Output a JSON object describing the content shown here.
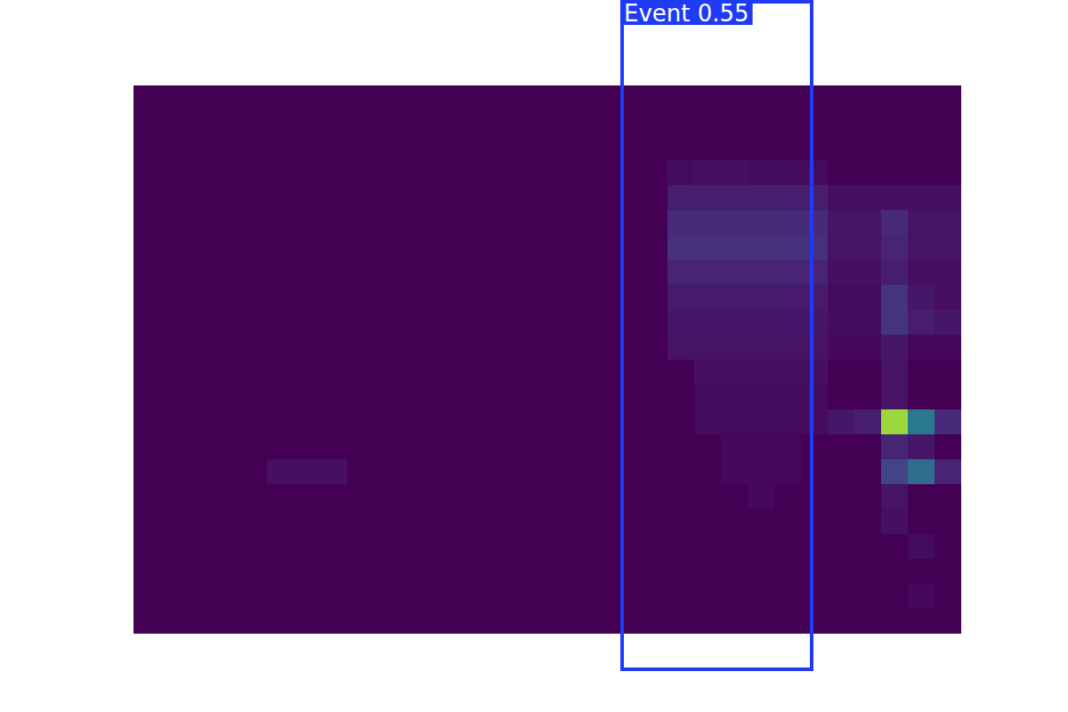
{
  "chart_data": {
    "type": "heatmap",
    "tick_labels": false,
    "grid": false,
    "xlim": [
      0,
      31
    ],
    "ylim": [
      0,
      22
    ],
    "color_range": [
      0,
      1
    ],
    "cells": [
      [
        0,
        0,
        0,
        0,
        0,
        0,
        0,
        0,
        0,
        0,
        0,
        0,
        0,
        0,
        0,
        0,
        0,
        0,
        0,
        0,
        0,
        0,
        0,
        0,
        0,
        0,
        0,
        0,
        0,
        0,
        0
      ],
      [
        0,
        0,
        0,
        0,
        0,
        0,
        0,
        0,
        0,
        0,
        0,
        0,
        0,
        0,
        0,
        0,
        0,
        0,
        0,
        0,
        0,
        0,
        0,
        0,
        0,
        0,
        0,
        0,
        0,
        0,
        0
      ],
      [
        0,
        0,
        0,
        0,
        0,
        0,
        0,
        0,
        0,
        0,
        0,
        0,
        0,
        0,
        0,
        0,
        0,
        0,
        0,
        0,
        0,
        0,
        0,
        0,
        0,
        0,
        0,
        0,
        0,
        0,
        0
      ],
      [
        0,
        0,
        0,
        0,
        0,
        0,
        0,
        0,
        0,
        0,
        0,
        0,
        0,
        0,
        0,
        0,
        0,
        0,
        0,
        0,
        0.03,
        0.04,
        0.04,
        0.03,
        0.03,
        0.03,
        0,
        0,
        0,
        0,
        0
      ],
      [
        0,
        0,
        0,
        0,
        0,
        0,
        0,
        0,
        0,
        0,
        0,
        0,
        0,
        0,
        0,
        0,
        0,
        0,
        0,
        0,
        0.08,
        0.08,
        0.08,
        0.08,
        0.08,
        0.08,
        0.04,
        0.04,
        0.04,
        0.04,
        0.04
      ],
      [
        0,
        0,
        0,
        0,
        0,
        0,
        0,
        0,
        0,
        0,
        0,
        0,
        0,
        0,
        0,
        0,
        0,
        0,
        0,
        0,
        0.12,
        0.12,
        0.12,
        0.12,
        0.12,
        0.12,
        0.05,
        0.05,
        0.12,
        0.05,
        0.05
      ],
      [
        0,
        0,
        0,
        0,
        0,
        0,
        0,
        0,
        0,
        0,
        0,
        0,
        0,
        0,
        0,
        0,
        0,
        0,
        0,
        0,
        0.14,
        0.14,
        0.14,
        0.14,
        0.14,
        0.14,
        0.05,
        0.05,
        0.1,
        0.05,
        0.05
      ],
      [
        0,
        0,
        0,
        0,
        0,
        0,
        0,
        0,
        0,
        0,
        0,
        0,
        0,
        0,
        0,
        0,
        0,
        0,
        0,
        0,
        0.1,
        0.1,
        0.1,
        0.1,
        0.1,
        0.1,
        0.04,
        0.04,
        0.08,
        0.04,
        0.04
      ],
      [
        0,
        0,
        0,
        0,
        0,
        0,
        0,
        0,
        0,
        0,
        0,
        0,
        0,
        0,
        0,
        0,
        0,
        0,
        0,
        0,
        0.07,
        0.07,
        0.07,
        0.07,
        0.07,
        0.07,
        0.03,
        0.03,
        0.15,
        0.06,
        0.04
      ],
      [
        0,
        0,
        0,
        0,
        0,
        0,
        0,
        0,
        0,
        0,
        0,
        0,
        0,
        0,
        0,
        0,
        0,
        0,
        0,
        0,
        0.06,
        0.06,
        0.06,
        0.06,
        0.06,
        0.06,
        0.03,
        0.03,
        0.15,
        0.08,
        0.06
      ],
      [
        0,
        0,
        0,
        0,
        0,
        0,
        0,
        0,
        0,
        0,
        0,
        0,
        0,
        0,
        0,
        0,
        0,
        0,
        0,
        0,
        0.05,
        0.05,
        0.05,
        0.05,
        0.05,
        0.05,
        0.02,
        0.02,
        0.06,
        0.02,
        0.02
      ],
      [
        0,
        0,
        0,
        0,
        0,
        0,
        0,
        0,
        0,
        0,
        0,
        0,
        0,
        0,
        0,
        0,
        0,
        0,
        0,
        0,
        0,
        0.04,
        0.04,
        0.04,
        0.04,
        0.04,
        0,
        0,
        0.05,
        0,
        0
      ],
      [
        0,
        0,
        0,
        0,
        0,
        0,
        0,
        0,
        0,
        0,
        0,
        0,
        0,
        0,
        0,
        0,
        0,
        0,
        0,
        0,
        0,
        0.03,
        0.03,
        0.03,
        0.03,
        0.03,
        0,
        0,
        0.05,
        0,
        0
      ],
      [
        0,
        0,
        0,
        0,
        0,
        0,
        0,
        0,
        0,
        0,
        0,
        0,
        0,
        0,
        0,
        0,
        0,
        0,
        0,
        0,
        0,
        0.03,
        0.03,
        0.03,
        0.03,
        0.03,
        0.06,
        0.08,
        0.85,
        0.4,
        0.12
      ],
      [
        0,
        0,
        0,
        0,
        0,
        0,
        0,
        0,
        0,
        0,
        0,
        0,
        0,
        0,
        0,
        0,
        0,
        0,
        0,
        0,
        0,
        0,
        0.02,
        0.02,
        0.02,
        0,
        0,
        0,
        0.1,
        0.06,
        0
      ],
      [
        0,
        0,
        0,
        0,
        0,
        0.04,
        0.04,
        0.04,
        0,
        0,
        0,
        0,
        0,
        0,
        0,
        0,
        0,
        0,
        0,
        0,
        0,
        0,
        0.02,
        0.02,
        0.02,
        0,
        0,
        0,
        0.2,
        0.35,
        0.1
      ],
      [
        0,
        0,
        0,
        0,
        0,
        0,
        0,
        0,
        0,
        0,
        0,
        0,
        0,
        0,
        0,
        0,
        0,
        0,
        0,
        0,
        0,
        0,
        0,
        0.02,
        0,
        0,
        0,
        0,
        0.05,
        0,
        0
      ],
      [
        0,
        0,
        0,
        0,
        0,
        0,
        0,
        0,
        0,
        0,
        0,
        0,
        0,
        0,
        0,
        0,
        0,
        0,
        0,
        0,
        0,
        0,
        0,
        0,
        0,
        0,
        0,
        0,
        0.04,
        0,
        0
      ],
      [
        0,
        0,
        0,
        0,
        0,
        0,
        0,
        0,
        0,
        0,
        0,
        0,
        0,
        0,
        0,
        0,
        0,
        0,
        0,
        0,
        0,
        0,
        0,
        0,
        0,
        0,
        0,
        0,
        0,
        0.03,
        0
      ],
      [
        0,
        0,
        0,
        0,
        0,
        0,
        0,
        0,
        0,
        0,
        0,
        0,
        0,
        0,
        0,
        0,
        0,
        0,
        0,
        0,
        0,
        0,
        0,
        0,
        0,
        0,
        0,
        0,
        0,
        0,
        0
      ],
      [
        0,
        0,
        0,
        0,
        0,
        0,
        0,
        0,
        0,
        0,
        0,
        0,
        0,
        0,
        0,
        0,
        0,
        0,
        0,
        0,
        0,
        0,
        0,
        0,
        0,
        0,
        0,
        0,
        0,
        0.02,
        0
      ],
      [
        0,
        0,
        0,
        0,
        0,
        0,
        0,
        0,
        0,
        0,
        0,
        0,
        0,
        0,
        0,
        0,
        0,
        0,
        0,
        0,
        0,
        0,
        0,
        0,
        0,
        0,
        0,
        0,
        0,
        0,
        0
      ]
    ],
    "annotations": [
      {
        "label": "Event 0.55",
        "x": [
          18.3,
          25.4
        ],
        "color": "#1f3bf5"
      }
    ]
  }
}
